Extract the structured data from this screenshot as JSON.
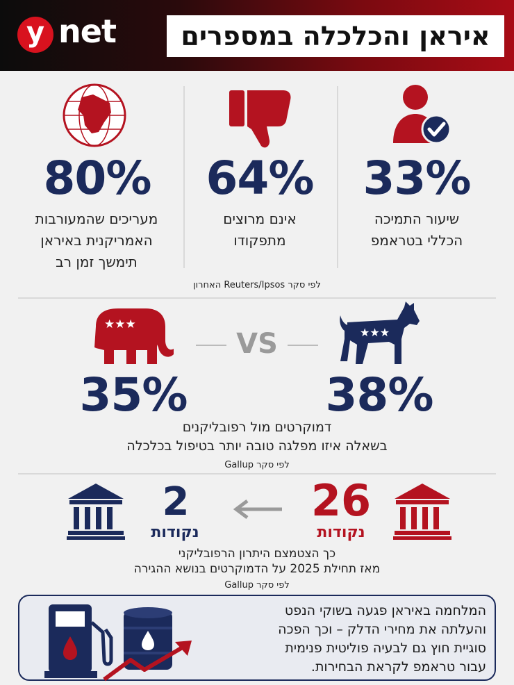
{
  "header": {
    "logo_y": "y",
    "logo_net": "net",
    "title": "איראן והכלכלה במספרים"
  },
  "stats_top": [
    {
      "value": "33%",
      "label_lines": [
        "שיעור התמיכה",
        "הכללי בטראמפ"
      ],
      "icon": "user-check-icon"
    },
    {
      "value": "64%",
      "label_lines": [
        "אינם מרוצים",
        "מתפקודו"
      ],
      "icon": "thumbs-down-icon"
    },
    {
      "value": "80%",
      "label_lines": [
        "מעריכים שהמעורבות",
        "האמריקנית באיראן",
        "תימשך זמן רב"
      ],
      "icon": "globe-middle-east-icon"
    }
  ],
  "source_top": "לפי סקר Reuters/Ipsos האחרון",
  "parties": {
    "dem_value": "38%",
    "rep_value": "35%",
    "vs": "VS",
    "caption_line1": "דמוקרטים מול רפובליקנים",
    "caption_line2": "בשאלה איזו מפלגה טובה יותר בטיפול בכלכלה",
    "source": "לפי סקר Gallup"
  },
  "immigration": {
    "before_value": "26",
    "before_unit": "נקודות",
    "after_value": "2",
    "after_unit": "נקודות",
    "caption_line1": "כך הצטמצם היתרון הרפובליקני",
    "caption_line2": "מאז תחילת 2025 על הדמוקרטים בנושא ההגירה",
    "source": "לפי סקר Gallup"
  },
  "fuel": {
    "lines": [
      "המלחמה באיראן פגעה בשוקי הנפט",
      "והעלתה את מחירי הדלק – וכך הפכה",
      "סוגיית חוץ גם לבעיה פוליטית פנימית",
      "עבור טראמפ לקראת הבחירות."
    ]
  },
  "colors": {
    "navy": "#1b2a5b",
    "red": "#b41320",
    "gray": "#9a9a9a"
  }
}
